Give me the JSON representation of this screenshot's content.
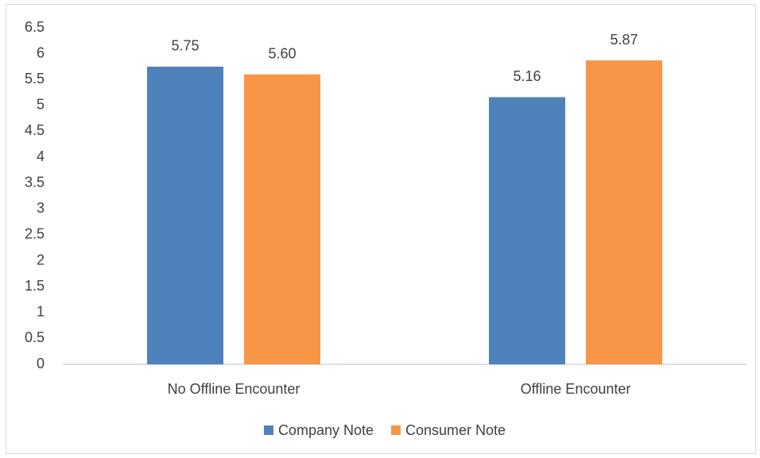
{
  "chart_data": {
    "type": "bar",
    "categories": [
      "No Offline Encounter",
      "Offline Encounter"
    ],
    "series": [
      {
        "name": "Company Note",
        "color": "#4f81bd",
        "values": [
          5.75,
          5.16
        ],
        "value_labels": [
          "5.75",
          "5.16"
        ]
      },
      {
        "name": "Consumer Note",
        "color": "#f79646",
        "values": [
          5.6,
          5.87
        ],
        "value_labels": [
          "5.60",
          "5.87"
        ]
      }
    ],
    "ylim": [
      0,
      6.5
    ],
    "yticks": [
      0,
      0.5,
      1,
      1.5,
      2,
      2.5,
      3,
      3.5,
      4,
      4.5,
      5,
      5.5,
      6,
      6.5
    ],
    "grid": false,
    "legend": "bottom"
  }
}
